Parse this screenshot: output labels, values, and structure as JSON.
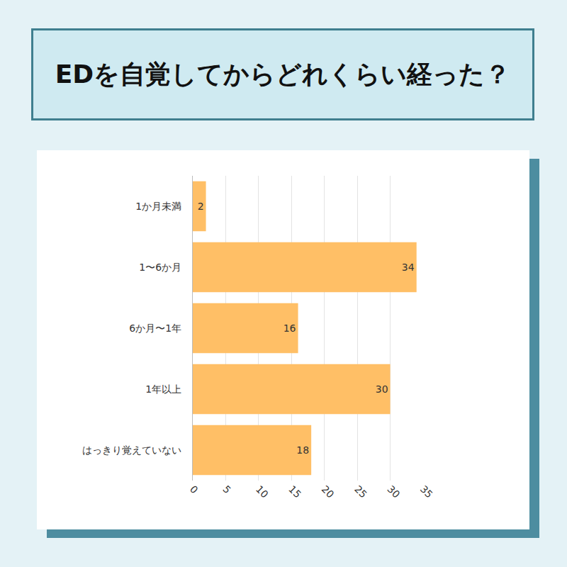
{
  "chart_data": {
    "type": "bar",
    "title": "EDを自覚してからどれくらい経った？",
    "orientation": "horizontal",
    "categories": [
      "1か月未満",
      "1〜6か月",
      "6か月〜1年",
      "1年以上",
      "はっきり覚えていない"
    ],
    "values": [
      2,
      34,
      16,
      30,
      18
    ],
    "color": "#ffbf66",
    "xlim": [
      0,
      35
    ],
    "xticks": [
      0,
      5,
      10,
      15,
      20,
      25,
      30,
      35
    ],
    "grid": true,
    "data_labels": true
  }
}
